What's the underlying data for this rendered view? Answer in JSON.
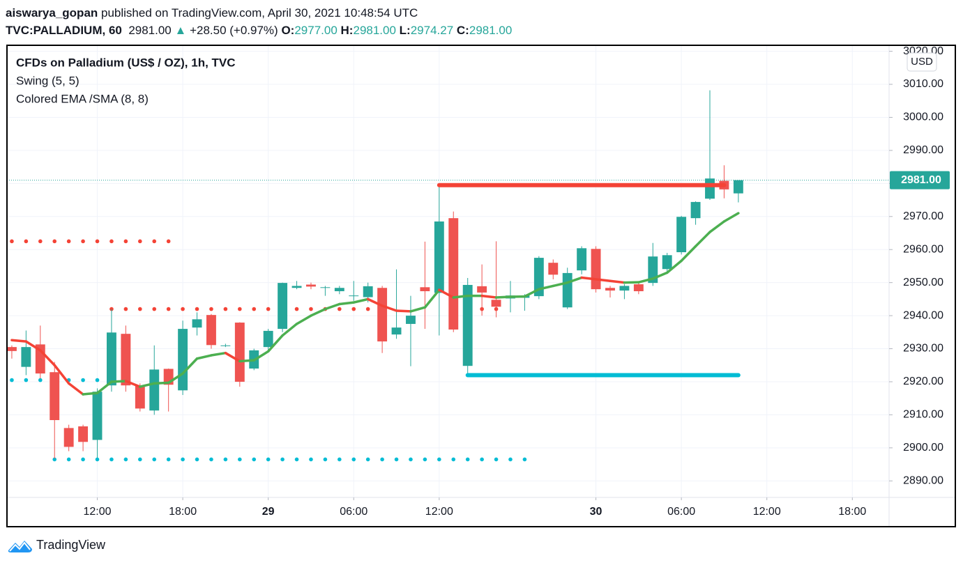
{
  "header": {
    "publisher": "aiswarya_gopan",
    "published": "published on TradingView.com, April 30, 2021 10:48:54 UTC",
    "symbol": "TVC:PALLADIUM, 60",
    "last": "2981.00",
    "arrow": "▲",
    "change": "+28.50 (+0.97%)",
    "o_label": "O:",
    "open": "2977.00",
    "h_label": "H:",
    "high": "2981.00",
    "l_label": "L:",
    "low": "2974.27",
    "c_label": "C:",
    "close": "2981.00"
  },
  "chart_data": {
    "type": "candlestick",
    "title": "CFDs on Palladium (US$ / OZ), 1h, TVC",
    "indicators": [
      "Swing (5, 5)",
      "Colored EMA /SMA (8, 8)"
    ],
    "currency": "USD",
    "open": [
      2930.5,
      2924.5,
      2931.3,
      2922.9,
      2906,
      2906.5,
      2902.4,
      2918.9,
      2934.5,
      2918.9,
      2911.3,
      2923.9,
      2917.4,
      2936.4,
      2940.2,
      2931,
      2937.9,
      2924,
      2930.5,
      2936,
      2948.4,
      2949.4,
      2948.4,
      2947.4,
      2946,
      2945.6,
      2948.4,
      2934.3,
      2937.5,
      2948.6,
      2946.9,
      2969.5,
      2924.8,
      2948.9,
      2944.8,
      2945.2,
      2945.4,
      2945.9,
      2956,
      2942.5,
      2953.7,
      2960.2,
      2948.4,
      2947.6,
      2949.5,
      2949.9,
      2954.1,
      2959.2,
      2969.5,
      2975.4,
      2980.8,
      2977
    ],
    "high": [
      2931,
      2935.5,
      2937,
      2926,
      2907,
      2907,
      2918,
      2942,
      2937,
      2919.5,
      2931,
      2924,
      2938.5,
      2941,
      2940.5,
      2931.5,
      2938,
      2930,
      2936,
      2950,
      2950.5,
      2950,
      2949,
      2949,
      2950.5,
      2950,
      2949,
      2954,
      2946,
      2962.4,
      2980,
      2971.5,
      2951.4,
      2955.5,
      2962.5,
      2950.5,
      2946.5,
      2958,
      2957,
      2954.5,
      2961,
      2961,
      2949,
      2949.5,
      2950,
      2962,
      2959,
      2970.2,
      2974.6,
      3008.2,
      2985.5,
      2981
    ],
    "low": [
      2927,
      2922,
      2921,
      2896.7,
      2899,
      2899,
      2897,
      2917,
      2917,
      2911,
      2910,
      2911,
      2916,
      2934,
      2930,
      2930.5,
      2918.5,
      2923.5,
      2929.5,
      2935,
      2948,
      2948,
      2946,
      2946.5,
      2944.5,
      2944,
      2928.7,
      2933,
      2924.7,
      2936,
      2934,
      2935,
      2922,
      2940,
      2939.5,
      2941,
      2941.5,
      2945,
      2951,
      2942,
      2952.5,
      2947,
      2945.5,
      2945,
      2946.5,
      2949,
      2953,
      2958.5,
      2967.5,
      2975,
      2975.5,
      2974.27
    ],
    "close": [
      2929.3,
      2930.5,
      2922.5,
      2908.4,
      2900.3,
      2901.8,
      2917,
      2934.9,
      2918.9,
      2911.9,
      2923.7,
      2919.1,
      2936,
      2938.9,
      2931.1,
      2931,
      2920,
      2929.5,
      2935.4,
      2949.9,
      2949,
      2948.8,
      2948.6,
      2948.4,
      2946.1,
      2948.9,
      2932.2,
      2936.4,
      2940,
      2947.4,
      2968.5,
      2935.8,
      2949.3,
      2947,
      2942.7,
      2946.1,
      2946.1,
      2957.5,
      2952.4,
      2952.9,
      2960.4,
      2948,
      2947.6,
      2949,
      2947.4,
      2957.9,
      2958.3,
      2969.9,
      2974.4,
      2981.5,
      2978.2,
      2981
    ],
    "up_color": "#26a69a",
    "down_color": "#ef5350",
    "ema": {
      "values": [
        2932.6,
        2932.2,
        2929.5,
        2925,
        2919.5,
        2916.2,
        2916.6,
        2920,
        2920.2,
        2918.5,
        2919.5,
        2919.7,
        2922.5,
        2927,
        2928,
        2928.7,
        2926.2,
        2926.5,
        2929.2,
        2934,
        2937.5,
        2940,
        2942,
        2943.5,
        2944,
        2945,
        2943,
        2941.5,
        2941.3,
        2942.5,
        2947.8,
        2945.5,
        2946,
        2946,
        2945.5,
        2945.7,
        2945.8,
        2948,
        2949,
        2950,
        2951.5,
        2951,
        2950.5,
        2950,
        2950.1,
        2951.2,
        2953,
        2956.6,
        2961,
        2965.3,
        2968.5,
        2971
      ],
      "up_color": "#4caf50",
      "down_color": "#f44336"
    },
    "swing_levels": [
      {
        "color": "#f44336",
        "value": 2962.5,
        "start": 0,
        "end": 11,
        "style": "dots"
      },
      {
        "color": "#f44336",
        "value": 2942,
        "start": 7,
        "end": 26,
        "style": "dots"
      },
      {
        "color": "#f44336",
        "value": 2942,
        "start": 33,
        "end": 34,
        "style": "dots"
      },
      {
        "color": "#f44336",
        "value": 2979.5,
        "start": 30,
        "end": 50,
        "style": "line"
      },
      {
        "color": "#00bcd4",
        "value": 2920.5,
        "start": 0,
        "end": 6,
        "style": "dots"
      },
      {
        "color": "#00bcd4",
        "value": 2896.5,
        "start": 3,
        "end": 36,
        "style": "dots"
      },
      {
        "color": "#00bcd4",
        "value": 2922,
        "start": 32,
        "end": 51,
        "style": "line"
      }
    ],
    "last_price": {
      "value": 2981,
      "label": "2981.00",
      "color": "#26a69a"
    },
    "xlim": [
      -0.34,
      61.58
    ],
    "xticks": [
      {
        "value": 6,
        "label": "12:00"
      },
      {
        "value": 12,
        "label": "18:00"
      },
      {
        "value": 18,
        "label": "29"
      },
      {
        "value": 24,
        "label": "06:00"
      },
      {
        "value": 30,
        "label": "12:00"
      },
      {
        "value": 41,
        "label": "30"
      },
      {
        "value": 47,
        "label": "06:00"
      },
      {
        "value": 53,
        "label": "12:00"
      },
      {
        "value": 59,
        "label": "18:00"
      }
    ],
    "ylim": [
      2885,
      3021.6
    ],
    "yticks": [
      {
        "value": 2890,
        "label": "2890.00"
      },
      {
        "value": 2900,
        "label": "2900.00"
      },
      {
        "value": 2910,
        "label": "2910.00"
      },
      {
        "value": 2920,
        "label": "2920.00"
      },
      {
        "value": 2930,
        "label": "2930.00"
      },
      {
        "value": 2940,
        "label": "2940.00"
      },
      {
        "value": 2950,
        "label": "2950.00"
      },
      {
        "value": 2960,
        "label": "2960.00"
      },
      {
        "value": 2970,
        "label": "2970.00"
      },
      {
        "value": 2980,
        "label": "2980.00"
      },
      {
        "value": 2990,
        "label": "2990.00"
      },
      {
        "value": 3000,
        "label": "3000.00"
      },
      {
        "value": 3010,
        "label": "3010.00"
      },
      {
        "value": 3020,
        "label": "3020.00"
      }
    ],
    "grid": true
  },
  "footer": {
    "brand": "TradingView"
  }
}
